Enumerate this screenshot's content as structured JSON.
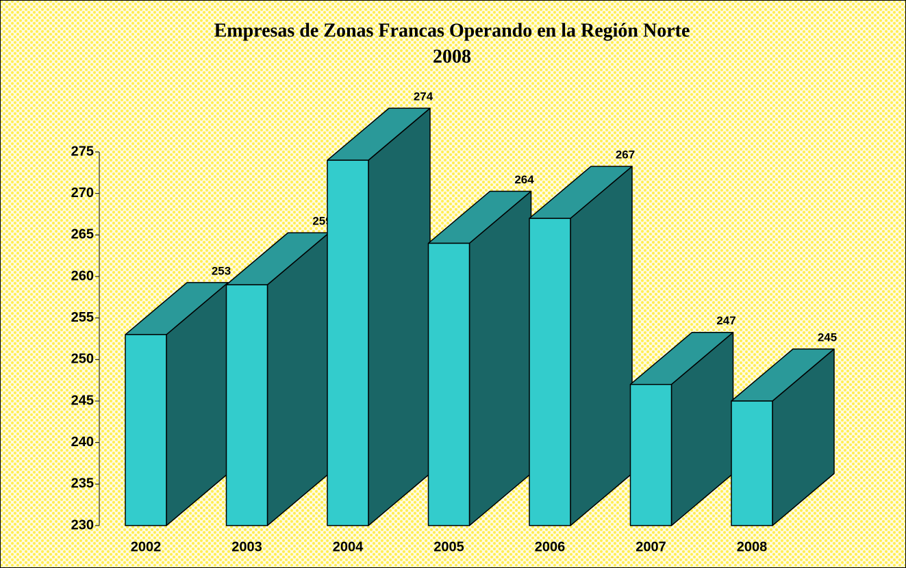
{
  "chart_data": {
    "type": "bar3d",
    "title": "Empresas de Zonas Francas Operando en la Región Norte",
    "subtitle": "2008",
    "categories": [
      "2002",
      "2003",
      "2004",
      "2005",
      "2006",
      "2007",
      "2008"
    ],
    "values": [
      253,
      259,
      274,
      264,
      267,
      247,
      245
    ],
    "colors": {
      "front": "#33cccc",
      "side": "#1a6666",
      "top": "#2a9999"
    },
    "ylim": [
      230,
      275
    ],
    "yticks": [
      230,
      235,
      240,
      245,
      250,
      255,
      260,
      265,
      270,
      275
    ]
  }
}
